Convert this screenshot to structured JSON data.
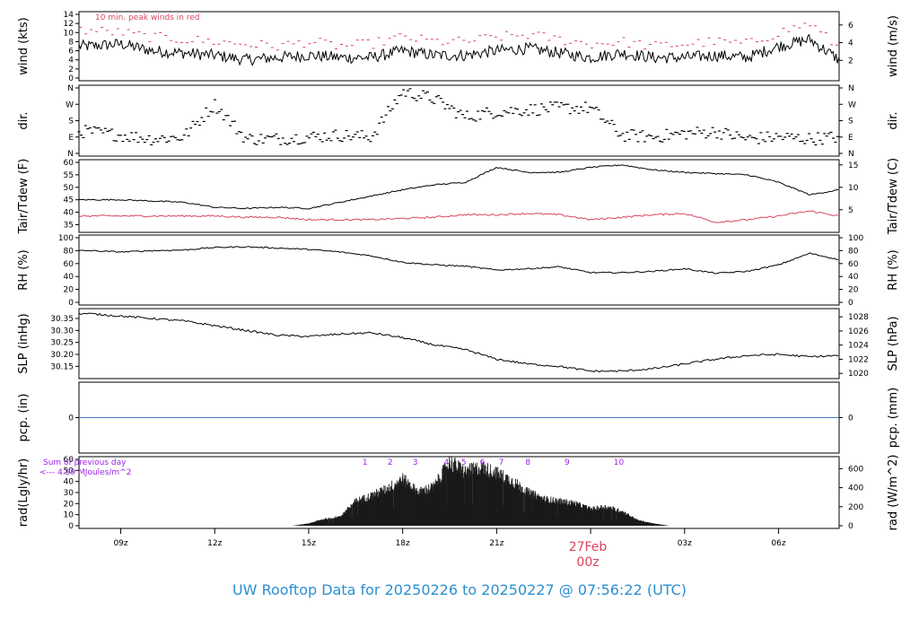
{
  "colors": {
    "trace": "#000000",
    "peak": "#d9455f",
    "dew": "#d9455f",
    "precip_line": "#4a78c0",
    "annotation": "#a020f0",
    "date_label": "#d9455f",
    "footer": "#2c8fd0"
  },
  "footer_title": "UW Rooftop Data for 20250226  to  20250227 @ 07:56:22  (UTC)",
  "time_axis": {
    "ticks": [
      "09z",
      "12z",
      "15z",
      "18z",
      "21z",
      "00z",
      "03z",
      "06z"
    ],
    "date_label": "27Feb",
    "date_label_hour": "00z"
  },
  "chart_data": [
    {
      "type": "line",
      "ylabel_left": "wind (kts)",
      "ylabel_right": "wind (m/s)",
      "annotation": "10 min. peak winds in red",
      "ylim": [
        0,
        14
      ],
      "yticks_left": [
        0,
        2,
        4,
        6,
        8,
        10,
        12,
        14
      ],
      "yticks_right": [
        2,
        4,
        6
      ],
      "x": [
        "08z",
        "09z",
        "10z",
        "11z",
        "12z",
        "13z",
        "14z",
        "15z",
        "16z",
        "17z",
        "18z",
        "19z",
        "20z",
        "21z",
        "22z",
        "23z",
        "00z",
        "01z",
        "02z",
        "03z",
        "04z",
        "05z",
        "06z",
        "07z",
        "07:56z"
      ],
      "series": [
        {
          "values": [
            7,
            7.5,
            6,
            5.5,
            5,
            4,
            4.5,
            5,
            4.5,
            4.5,
            6,
            5,
            5,
            6,
            6.5,
            5.5,
            4.5,
            5.5,
            4.5,
            4.5,
            5,
            4.5,
            7,
            8.5,
            4
          ]
        },
        {
          "values": [
            10.5,
            10,
            9,
            8.5,
            8,
            7.5,
            7,
            8,
            7,
            7.5,
            9,
            8,
            8,
            9,
            9.5,
            8.5,
            7.5,
            8,
            7,
            7.5,
            8,
            7.5,
            10,
            12,
            6.5
          ]
        }
      ]
    },
    {
      "type": "scatter",
      "ylabel_left": "dir.",
      "ylabel_right": "dir.",
      "yticks_left": [
        "N",
        "E",
        "S",
        "W",
        "N"
      ],
      "yticks_right": [
        "N",
        "E",
        "S",
        "W",
        "N"
      ],
      "ylim": [
        0,
        360
      ],
      "x": [
        "08z",
        "09z",
        "10z",
        "11z",
        "12z",
        "13z",
        "14z",
        "15z",
        "16z",
        "17z",
        "18z",
        "19z",
        "20z",
        "21z",
        "22z",
        "23z",
        "00z",
        "01z",
        "02z",
        "03z",
        "04z",
        "05z",
        "06z",
        "07z",
        "07:56z"
      ],
      "series": [
        {
          "values": [
            120,
            100,
            80,
            90,
            270,
            80,
            80,
            90,
            100,
            90,
            340,
            300,
            200,
            230,
            240,
            250,
            250,
            100,
            90,
            110,
            120,
            80,
            90,
            80,
            90
          ]
        }
      ]
    },
    {
      "type": "line",
      "ylabel_left": "Tair/Tdew (F)",
      "ylabel_right": "Tair/Tdew (C)",
      "ylim": [
        33,
        60
      ],
      "yticks_left": [
        35,
        40,
        45,
        50,
        55,
        60
      ],
      "yticks_right": [
        5,
        10,
        15
      ],
      "x": [
        "08z",
        "09z",
        "10z",
        "11z",
        "12z",
        "13z",
        "14z",
        "15z",
        "16z",
        "17z",
        "18z",
        "19z",
        "20z",
        "21z",
        "22z",
        "23z",
        "00z",
        "01z",
        "02z",
        "03z",
        "04z",
        "05z",
        "06z",
        "07z",
        "07:56z"
      ],
      "series": [
        {
          "values": [
            45,
            45,
            44.5,
            44,
            42,
            41.5,
            42,
            41.5,
            44,
            46.5,
            49,
            51,
            52,
            58,
            56,
            56,
            58,
            59,
            57,
            56,
            55.5,
            55,
            52,
            47,
            49
          ]
        },
        {
          "values": [
            38.5,
            38.5,
            38.5,
            38.5,
            38.5,
            38,
            38,
            37,
            37,
            37,
            37.5,
            38,
            39,
            39,
            39.5,
            39,
            37,
            38,
            39,
            39.5,
            36,
            37,
            38.5,
            40.5,
            38.5
          ]
        }
      ]
    },
    {
      "type": "line",
      "ylabel_left": "RH (%)",
      "ylabel_right": "RH (%)",
      "ylim": [
        0,
        100
      ],
      "yticks_left": [
        0,
        20,
        40,
        60,
        80,
        100
      ],
      "yticks_right": [
        0,
        20,
        40,
        60,
        80,
        100
      ],
      "x": [
        "08z",
        "09z",
        "10z",
        "11z",
        "12z",
        "13z",
        "14z",
        "15z",
        "16z",
        "17z",
        "18z",
        "19z",
        "20z",
        "21z",
        "22z",
        "23z",
        "00z",
        "01z",
        "02z",
        "03z",
        "04z",
        "05z",
        "06z",
        "07z",
        "07:56z"
      ],
      "series": [
        {
          "values": [
            80,
            78,
            80,
            81,
            85,
            86,
            84,
            82,
            78,
            72,
            62,
            58,
            56,
            50,
            52,
            55,
            46,
            46,
            48,
            52,
            45,
            48,
            58,
            76,
            66
          ]
        }
      ]
    },
    {
      "type": "line",
      "ylabel_left": "SLP (inHg)",
      "ylabel_right": "SLP (hPa)",
      "ylim": [
        30.11,
        30.38
      ],
      "yticks_left": [
        30.15,
        30.2,
        30.25,
        30.3,
        30.35
      ],
      "yticks_right": [
        1020,
        1022,
        1024,
        1026,
        1028
      ],
      "x": [
        "08z",
        "09z",
        "10z",
        "11z",
        "12z",
        "13z",
        "14z",
        "15z",
        "16z",
        "17z",
        "18z",
        "19z",
        "20z",
        "21z",
        "22z",
        "23z",
        "00z",
        "01z",
        "02z",
        "03z",
        "04z",
        "05z",
        "06z",
        "07z",
        "07:56z"
      ],
      "series": [
        {
          "values": [
            30.37,
            30.36,
            30.35,
            30.34,
            30.32,
            30.3,
            30.28,
            30.275,
            30.285,
            30.29,
            30.27,
            30.24,
            30.22,
            30.18,
            30.16,
            30.15,
            30.13,
            30.13,
            30.14,
            30.16,
            30.18,
            30.195,
            30.2,
            30.19,
            30.195
          ]
        }
      ]
    },
    {
      "type": "line",
      "ylabel_left": "pcp. (in)",
      "ylabel_right": "pcp. (mm)",
      "yticks_left": [
        0
      ],
      "yticks_right": [
        0
      ],
      "ylim": [
        -1,
        1
      ],
      "x": [
        "08z",
        "07:56z"
      ],
      "series": [
        {
          "values": [
            0,
            0
          ]
        }
      ]
    },
    {
      "type": "area",
      "ylabel_left": "rad(Lgly/hr)",
      "ylabel_right": "rad (W/m^2)",
      "ylim": [
        0,
        60
      ],
      "yticks_left": [
        0,
        10,
        20,
        30,
        40,
        50,
        60
      ],
      "yticks_right": [
        0,
        200,
        400,
        600
      ],
      "annotation_sum_label": "Sum of previous day",
      "annotation_sum_value": "<--- 4.99 MJoules/m^2",
      "hour_markers": [
        "1",
        "2",
        "3",
        "4",
        "5",
        "6",
        "7",
        "8",
        "9",
        "10"
      ],
      "x": [
        "14:30z",
        "15:00z",
        "15:30z",
        "16:00z",
        "16:30z",
        "17:00z",
        "17:30z",
        "18:00z",
        "18:30z",
        "19:00z",
        "19:30z",
        "20:00z",
        "20:30z",
        "21:00z",
        "21:30z",
        "22:00z",
        "22:30z",
        "23:00z",
        "23:30z",
        "00:00z",
        "00:30z",
        "01:00z",
        "01:30z",
        "02:00z",
        "02:30z"
      ],
      "series": [
        {
          "values": [
            0,
            2,
            6,
            8,
            22,
            27,
            33,
            42,
            30,
            35,
            57,
            48,
            52,
            47,
            40,
            30,
            24,
            22,
            20,
            15,
            17,
            13,
            5,
            2,
            0
          ]
        }
      ]
    }
  ]
}
